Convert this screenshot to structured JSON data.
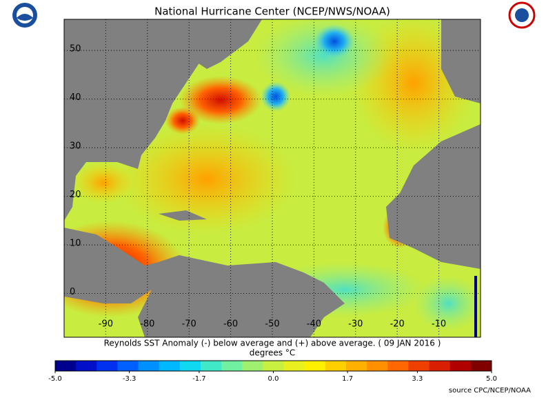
{
  "header": {
    "title": "National Hurricane Center (NCEP/NWS/NOAA)"
  },
  "map": {
    "xlim": [
      -100,
      0
    ],
    "ylim": [
      -9,
      56.4
    ],
    "xticks": [
      -90,
      -80,
      -70,
      -60,
      -50,
      -40,
      -30,
      -20,
      -10
    ],
    "yticks": [
      0,
      10,
      20,
      30,
      40,
      50
    ]
  },
  "caption": "Reynolds SST Anomaly (-) below average and (+) above average. ( 09 JAN 2016 )",
  "units": "degrees °C",
  "colorbar": {
    "range": [
      -5,
      5
    ],
    "ticks": [
      {
        "value": -5,
        "label": "-5.0"
      },
      {
        "value": -3.3,
        "label": "-3.3"
      },
      {
        "value": -1.7,
        "label": "-1.7"
      },
      {
        "value": 0,
        "label": "0.0"
      },
      {
        "value": 1.7,
        "label": "1.7"
      },
      {
        "value": 3.3,
        "label": "3.3"
      },
      {
        "value": 5,
        "label": "5.0"
      }
    ],
    "colors": [
      "#00008f",
      "#0010c8",
      "#0030f0",
      "#0060ff",
      "#0090ff",
      "#00b8ff",
      "#10d8f0",
      "#40e8c8",
      "#70f0a0",
      "#a0f070",
      "#c8f040",
      "#e8f020",
      "#fff000",
      "#ffd000",
      "#ffb000",
      "#ff9000",
      "#ff6800",
      "#f04000",
      "#d82000",
      "#b00000",
      "#800000"
    ]
  },
  "source": "source  CPC/NCEP/NOAA"
}
